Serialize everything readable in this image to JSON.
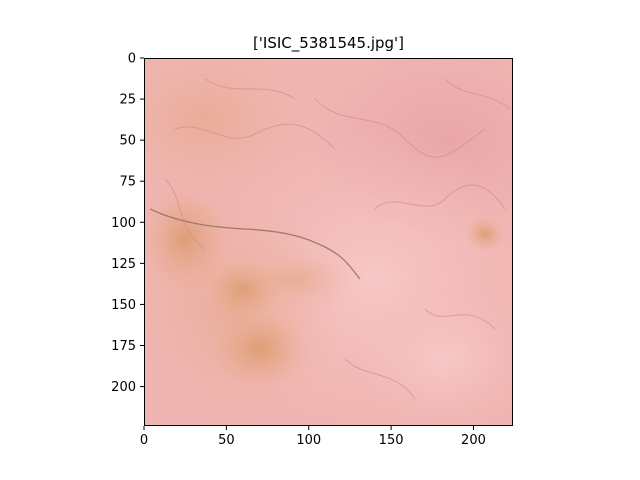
{
  "title": "['ISIC_5381545.jpg']",
  "image": {
    "subject": "dermoscopic skin image",
    "dominant_color": "#f3b9b5",
    "accent_colors": [
      "#e7a7a6",
      "#e5a57a",
      "#c98a5a",
      "#d48a97",
      "#b58a7a"
    ]
  },
  "axes": {
    "xlim": [
      0,
      224
    ],
    "ylim": [
      224,
      0
    ],
    "x_ticks": [
      "0",
      "50",
      "100",
      "150",
      "200"
    ],
    "y_ticks": [
      "0",
      "25",
      "50",
      "75",
      "100",
      "125",
      "150",
      "175",
      "200"
    ]
  }
}
